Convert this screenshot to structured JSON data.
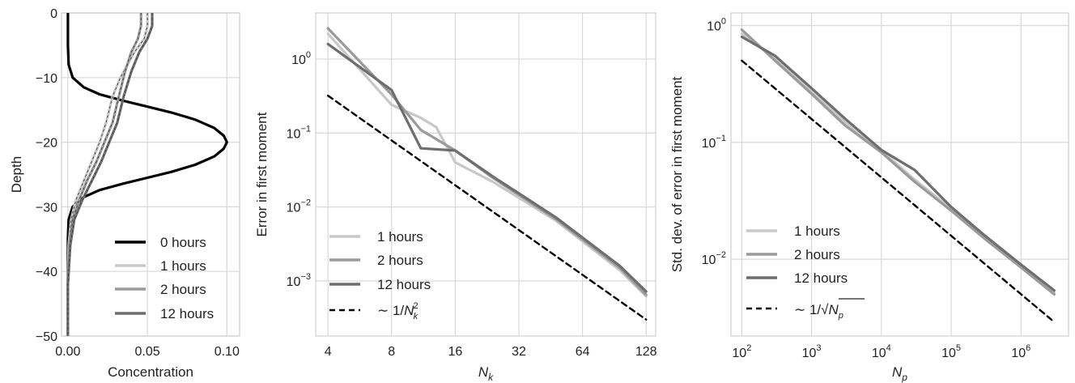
{
  "chart_data": [
    {
      "type": "line",
      "xlabel": "Concentration",
      "ylabel": "Depth",
      "xlim": [
        -0.004,
        0.108
      ],
      "ylim": [
        -50,
        0
      ],
      "xticks": [
        0.0,
        0.05,
        0.1
      ],
      "xtick_labels": [
        "0.00",
        "0.05",
        "0.10"
      ],
      "yticks": [
        0,
        -10,
        -20,
        -30,
        -40,
        -50
      ],
      "ytick_labels": [
        "0",
        "−10",
        "−20",
        "−30",
        "−40",
        "−50"
      ],
      "grid": true,
      "legend_position": "lower-right",
      "series": [
        {
          "name": "0 hours",
          "color": "#000000",
          "x": [
            0.0,
            0.0,
            0.0005,
            0.003,
            0.01,
            0.02,
            0.035,
            0.05,
            0.065,
            0.08,
            0.092,
            0.098,
            0.1,
            0.098,
            0.092,
            0.08,
            0.065,
            0.05,
            0.035,
            0.02,
            0.01,
            0.003,
            0.0005,
            0.0,
            0.0
          ],
          "y": [
            0,
            -5,
            -8,
            -10,
            -11.5,
            -12.6,
            -13.6,
            -14.5,
            -15.4,
            -16.5,
            -17.8,
            -19,
            -20,
            -21,
            -22.2,
            -23.5,
            -24.6,
            -25.5,
            -26.4,
            -27.4,
            -28.5,
            -30,
            -32,
            -35,
            -50
          ]
        },
        {
          "name": "1 hours",
          "color": "#c8c8c8",
          "x": [
            0.05,
            0.05,
            0.048,
            0.042,
            0.033,
            0.028,
            0.024,
            0.02,
            0.015,
            0.01,
            0.005,
            0.002,
            0.0005,
            0.0,
            0.0
          ],
          "y": [
            0,
            -2,
            -4,
            -6,
            -10,
            -13,
            -17,
            -20,
            -23,
            -26,
            -29,
            -32,
            -36,
            -42,
            -50
          ]
        },
        {
          "name": "2 hours",
          "color": "#9a9a9a",
          "x": [
            0.046,
            0.046,
            0.044,
            0.04,
            0.036,
            0.032,
            0.028,
            0.023,
            0.018,
            0.012,
            0.007,
            0.003,
            0.001,
            0.0,
            0.0
          ],
          "y": [
            0,
            -2,
            -4,
            -6,
            -9,
            -13,
            -17,
            -20,
            -23,
            -26,
            -29,
            -32,
            -36,
            -42,
            -50
          ]
        },
        {
          "name": "12 hours",
          "color": "#6e6e6e",
          "x": [
            0.053,
            0.053,
            0.05,
            0.045,
            0.04,
            0.035,
            0.031,
            0.026,
            0.021,
            0.015,
            0.009,
            0.004,
            0.0015,
            0.0,
            0.0
          ],
          "y": [
            0,
            -2,
            -4,
            -6,
            -9,
            -13,
            -17,
            -20,
            -23,
            -26,
            -29,
            -32,
            -36,
            -42,
            -50
          ]
        }
      ]
    },
    {
      "type": "line",
      "xlabel": "N_k",
      "ylabel": "Error in first moment",
      "xscale": "log2",
      "yscale": "log10",
      "xlim": [
        3.5,
        142
      ],
      "ylim": [
        0.00018,
        4.2
      ],
      "xticks": [
        4,
        8,
        16,
        32,
        64,
        128
      ],
      "xtick_labels": [
        "4",
        "8",
        "16",
        "32",
        "64",
        "128"
      ],
      "yticks": [
        1,
        0.1,
        0.01,
        0.001
      ],
      "ytick_labels": [
        [
          "10",
          "0"
        ],
        [
          "10",
          "-1"
        ],
        [
          "10",
          "-2"
        ],
        [
          "10",
          "-3"
        ]
      ],
      "grid": true,
      "legend_position": "lower-left",
      "series": [
        {
          "name": "1 hours",
          "color": "#c8c8c8",
          "x": [
            4,
            8,
            11,
            13,
            16,
            24,
            48,
            96,
            128
          ],
          "y": [
            2.2,
            0.24,
            0.16,
            0.12,
            0.04,
            0.022,
            0.0065,
            0.0014,
            0.00062
          ]
        },
        {
          "name": "2 hours",
          "color": "#9a9a9a",
          "x": [
            4,
            8,
            11,
            16,
            24,
            48,
            96,
            128
          ],
          "y": [
            2.6,
            0.33,
            0.11,
            0.058,
            0.025,
            0.0068,
            0.0015,
            0.00065
          ]
        },
        {
          "name": "12 hours",
          "color": "#6e6e6e",
          "x": [
            4,
            8,
            11,
            16,
            24,
            48,
            96,
            128
          ],
          "y": [
            1.6,
            0.38,
            0.062,
            0.058,
            0.026,
            0.0072,
            0.0016,
            0.00072
          ]
        },
        {
          "name": "~ 1/N_k^2",
          "color": "#000000",
          "dashed": true,
          "x": [
            4,
            128
          ],
          "y": [
            0.32,
            0.0003
          ]
        }
      ]
    },
    {
      "type": "line",
      "xlabel": "N_p",
      "ylabel": "Std. dev. of error in first moment",
      "xscale": "log10",
      "yscale": "log10",
      "xlim": [
        70,
        4800000
      ],
      "ylim": [
        0.0022,
        1.28
      ],
      "xticks": [
        100,
        1000,
        10000,
        100000,
        1000000
      ],
      "xtick_labels": [
        [
          "10",
          "2"
        ],
        [
          "10",
          "3"
        ],
        [
          "10",
          "4"
        ],
        [
          "10",
          "5"
        ],
        [
          "10",
          "6"
        ]
      ],
      "yticks": [
        1,
        0.1,
        0.01
      ],
      "ytick_labels": [
        [
          "10",
          "0"
        ],
        [
          "10",
          "-1"
        ],
        [
          "10",
          "-2"
        ]
      ],
      "grid": true,
      "legend_position": "lower-left",
      "series": [
        {
          "name": "1 hours",
          "color": "#c8c8c8",
          "x": [
            100,
            300,
            1000,
            3000,
            10000,
            30000,
            100000,
            300000,
            1000000,
            3000000
          ],
          "y": [
            0.85,
            0.52,
            0.27,
            0.15,
            0.085,
            0.048,
            0.027,
            0.016,
            0.0088,
            0.0052
          ]
        },
        {
          "name": "2 hours",
          "color": "#9a9a9a",
          "x": [
            100,
            300,
            1000,
            3000,
            10000,
            30000,
            100000,
            300000,
            1000000,
            3000000
          ],
          "y": [
            0.92,
            0.5,
            0.26,
            0.14,
            0.082,
            0.046,
            0.026,
            0.015,
            0.0085,
            0.005
          ]
        },
        {
          "name": "12 hours",
          "color": "#6e6e6e",
          "x": [
            100,
            300,
            1000,
            3000,
            10000,
            30000,
            100000,
            300000,
            1000000,
            3000000
          ],
          "y": [
            0.8,
            0.55,
            0.29,
            0.16,
            0.086,
            0.058,
            0.028,
            0.016,
            0.009,
            0.0054
          ]
        },
        {
          "name": "~ 1/sqrt(N_p)",
          "color": "#000000",
          "dashed": true,
          "x": [
            100,
            3000000
          ],
          "y": [
            0.5,
            0.0029
          ]
        }
      ]
    }
  ],
  "legends": {
    "p1": [
      "0 hours",
      "1 hours",
      "2 hours",
      "12 hours"
    ],
    "p2": [
      "1 hours",
      "2 hours",
      "12 hours",
      "~ 1/N_k^2"
    ],
    "p3": [
      "1 hours",
      "2 hours",
      "12 hours",
      "~ 1/sqrt(N_p)"
    ]
  }
}
